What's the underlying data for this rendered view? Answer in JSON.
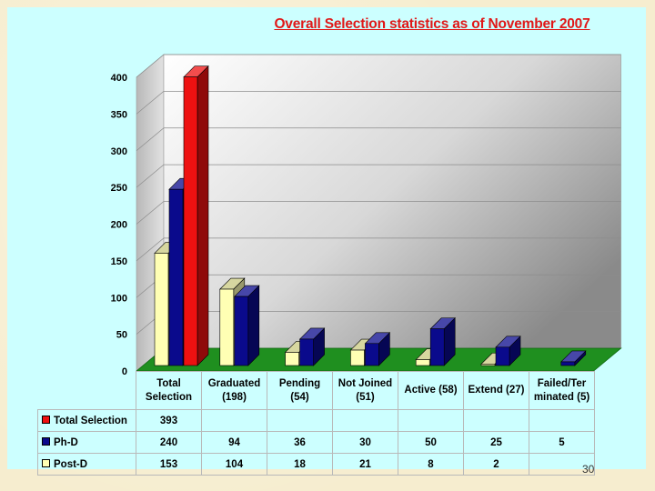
{
  "title": "Overall Selection statistics as of November 2007",
  "page_number": "30",
  "chart_data": {
    "type": "bar",
    "title": "Overall Selection statistics as of November 2007",
    "categories": [
      [
        "Total",
        "Selection"
      ],
      [
        "Graduated",
        "(198)"
      ],
      [
        "Pending",
        "(54)"
      ],
      [
        "Not Joined",
        "(51)"
      ],
      [
        "Active (58)"
      ],
      [
        "Extend (27)"
      ],
      [
        "Failed/Ter",
        "minated (5)"
      ]
    ],
    "series": [
      {
        "name": "Total Selection",
        "color": "#ee1111",
        "values": [
          393,
          null,
          null,
          null,
          null,
          null,
          null
        ]
      },
      {
        "name": "Ph-D",
        "color": "#0a0a8c",
        "values": [
          240,
          94,
          36,
          30,
          50,
          25,
          5
        ]
      },
      {
        "name": "Post-D",
        "color": "#ffffb4",
        "values": [
          153,
          104,
          18,
          21,
          8,
          2,
          null
        ]
      }
    ],
    "ylim": [
      0,
      400
    ],
    "yticks": [
      "0",
      "50",
      "100",
      "150",
      "200",
      "250",
      "300",
      "350",
      "400"
    ],
    "grid": true,
    "legend": "table-below"
  }
}
